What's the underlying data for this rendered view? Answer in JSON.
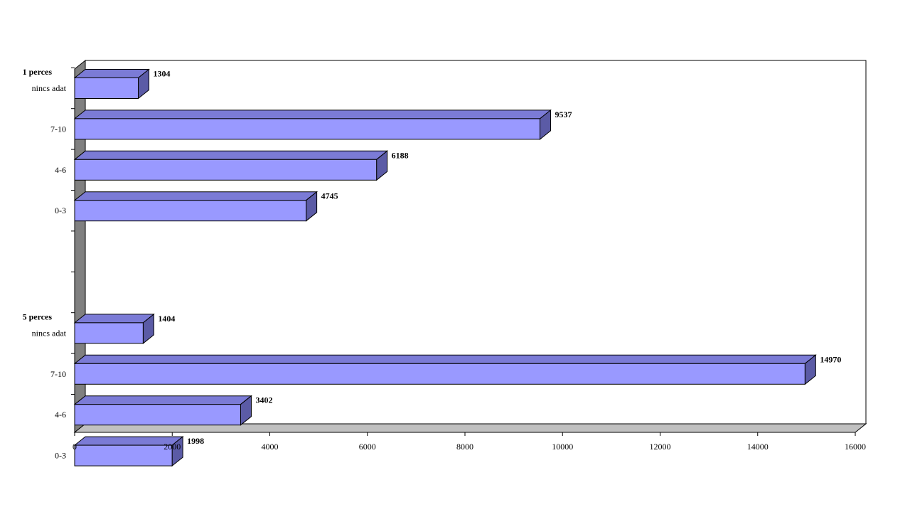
{
  "chart_data": {
    "type": "bar",
    "orientation": "horizontal",
    "style": "3d",
    "title": "",
    "xlabel": "",
    "ylabel": "",
    "xlim": [
      0,
      16000
    ],
    "x_ticks": [
      "0",
      "2000",
      "4000",
      "6000",
      "8000",
      "10000",
      "12000",
      "14000",
      "16000"
    ],
    "grid": false,
    "legend": "none",
    "groups": [
      {
        "name": "1 perces",
        "categories": [
          "nincs adat",
          "7-10",
          "4-6",
          "0-3"
        ],
        "values": [
          1304,
          9537,
          6188,
          4745
        ]
      },
      {
        "name": "5 perces",
        "categories": [
          "nincs adat",
          "7-10",
          "4-6",
          "0-3"
        ],
        "values": [
          1404,
          14970,
          3402,
          1998
        ]
      }
    ],
    "colors": {
      "bar_front": "#9999ff",
      "bar_top": "#7b7bd6",
      "bar_side": "#5b5ba6",
      "left_wall": "#808080",
      "floor": "#c0c0c0",
      "outline": "#000000"
    }
  }
}
